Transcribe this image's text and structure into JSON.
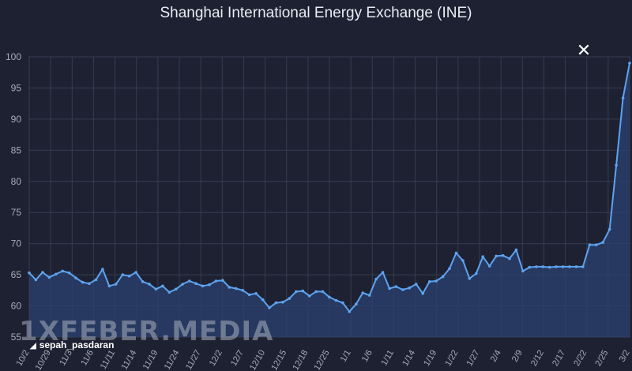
{
  "header": {
    "close_icon": "✕"
  },
  "watermark": {
    "text": "1XFEBER.MEDIA",
    "handle_arrow": "◢",
    "handle": "sepah_pasdaran"
  },
  "chart_data": {
    "type": "area",
    "title": "Shanghai International Energy Exchange (INE)",
    "xlabel": "",
    "ylabel": "",
    "ylim": [
      55,
      100
    ],
    "yticks": [
      55,
      60,
      65,
      70,
      75,
      80,
      85,
      90,
      95,
      100
    ],
    "grid": true,
    "colors": {
      "background": "#1d2132",
      "line": "#5ea3ef",
      "fill": "#2b4170",
      "grid": "#363c50",
      "tick": "#a8acb8"
    },
    "x_tick_labels": [
      "10/2",
      "10/29",
      "11/3",
      "11/6",
      "11/11",
      "11/14",
      "11/19",
      "11/24",
      "11/27",
      "12/2",
      "12/7",
      "12/10",
      "12/15",
      "12/18",
      "12/25",
      "1/1",
      "1/6",
      "1/11",
      "1/14",
      "1/19",
      "1/22",
      "1/27",
      "2/4",
      "2/9",
      "2/12",
      "2/17",
      "2/22",
      "2/25",
      "3/2"
    ],
    "series": [
      {
        "values": [
          65.3,
          64.2,
          65.4,
          64.6,
          65.1,
          65.6,
          65.3,
          64.5,
          63.8,
          63.6,
          64.2,
          65.9,
          63.2,
          63.5,
          65.0,
          64.8,
          65.4,
          63.9,
          63.5,
          62.7,
          63.2,
          62.2,
          62.7,
          63.5,
          64.0,
          63.6,
          63.2,
          63.4,
          64.0,
          64.1,
          63.0,
          62.8,
          62.5,
          61.8,
          62.0,
          61.0,
          59.7,
          60.5,
          60.6,
          61.2,
          62.3,
          62.4,
          61.6,
          62.3,
          62.3,
          61.4,
          60.9,
          60.5,
          59.1,
          60.3,
          62.1,
          61.7,
          64.3,
          65.4,
          62.8,
          63.1,
          62.6,
          62.9,
          63.5,
          62.0,
          63.9,
          64.0,
          64.7,
          66.0,
          68.5,
          67.3,
          64.4,
          65.2,
          67.9,
          66.4,
          68.0,
          68.1,
          67.6,
          69.0,
          65.6,
          66.2,
          66.3,
          66.3,
          66.2,
          66.3,
          66.3,
          66.3,
          66.3,
          66.3,
          69.8,
          69.8,
          70.2,
          72.3,
          82.6,
          93.4,
          99.0
        ]
      }
    ]
  }
}
